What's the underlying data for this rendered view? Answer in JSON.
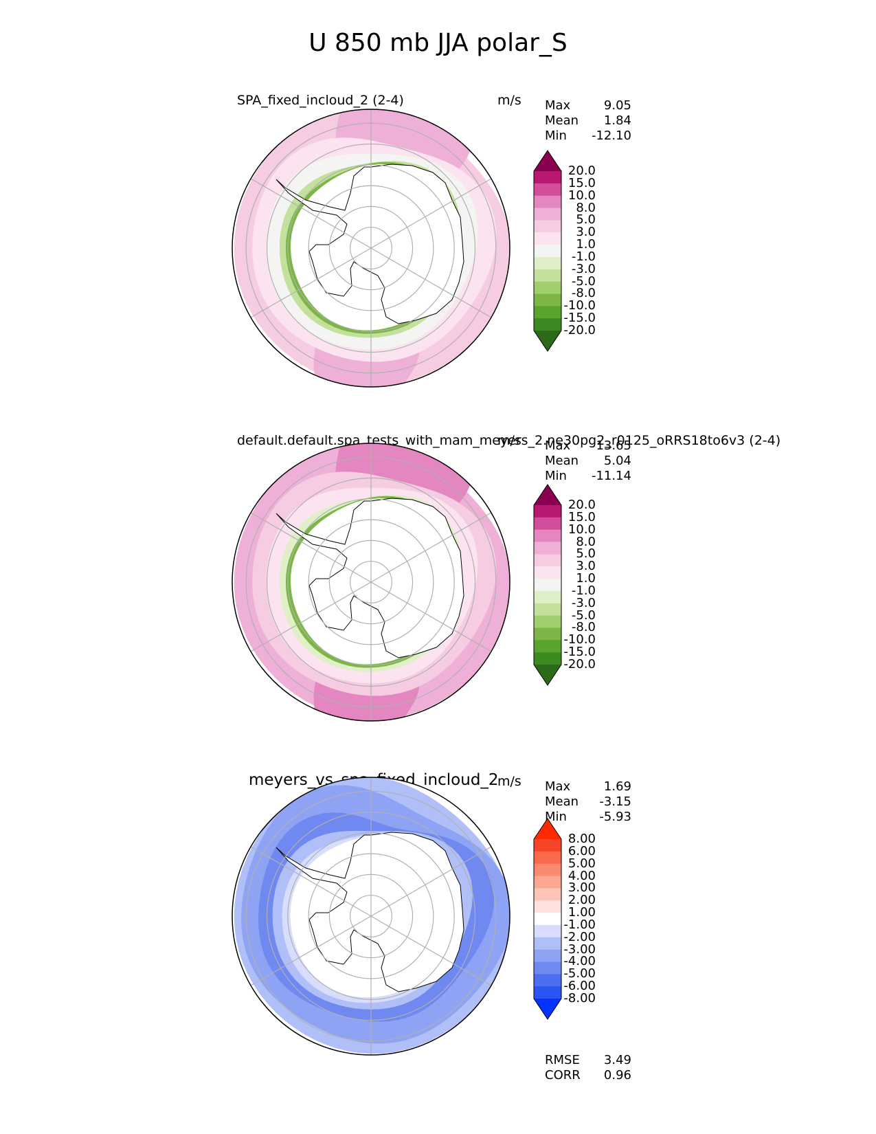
{
  "figure": {
    "title": "U 850 mb JJA polar_S"
  },
  "panels": [
    {
      "title": "SPA_fixed_incloud_2 (2-4)",
      "units": "m/s",
      "stats": [
        {
          "label": "Max",
          "value": "9.05"
        },
        {
          "label": "Mean",
          "value": "1.84"
        },
        {
          "label": "Min",
          "value": "-12.10"
        }
      ]
    },
    {
      "title": "default.default.spa_tests_with_mam_meyers_2.ne30pg2_r0125_oRRS18to6v3 (2-4)",
      "units": "m/s",
      "stats": [
        {
          "label": "Max",
          "value": "13.65"
        },
        {
          "label": "Mean",
          "value": "5.04"
        },
        {
          "label": "Min",
          "value": "-11.14"
        }
      ]
    },
    {
      "title": "meyers_vs_spa_fixed_incloud_2",
      "units": "m/s",
      "stats": [
        {
          "label": "Max",
          "value": "1.69"
        },
        {
          "label": "Mean",
          "value": "-3.15"
        },
        {
          "label": "Min",
          "value": "-5.93"
        }
      ],
      "metrics": [
        {
          "label": "RMSE",
          "value": "3.49"
        },
        {
          "label": "CORR",
          "value": "0.96"
        }
      ]
    }
  ],
  "chart_data": [
    {
      "type": "heatmap",
      "projection": "south polar stereographic",
      "title": "SPA_fixed_incloud_2 (2-4)",
      "units": "m/s",
      "colorbar": {
        "levels": [
          "-20.0",
          "-15.0",
          "-10.0",
          "-8.0",
          "-5.0",
          "-3.0",
          "-1.0",
          "1.0",
          "3.0",
          "5.0",
          "8.0",
          "10.0",
          "15.0",
          "20.0"
        ],
        "colors": [
          "#2c6a1a",
          "#3e8a22",
          "#5aa32e",
          "#7db646",
          "#a2cf6e",
          "#c3e19c",
          "#dff0c6",
          "#f4f4f2",
          "#fbe4f0",
          "#f6cce3",
          "#eeb0d6",
          "#e486bf",
          "#d24e9a",
          "#b8186f",
          "#8a0051"
        ],
        "extend": "both"
      },
      "stats": {
        "max": 9.05,
        "mean": 1.84,
        "min": -12.1
      }
    },
    {
      "type": "heatmap",
      "projection": "south polar stereographic",
      "title": "default.default.spa_tests_with_mam_meyers_2.ne30pg2_r0125_oRRS18to6v3 (2-4)",
      "units": "m/s",
      "colorbar": {
        "levels": [
          "-20.0",
          "-15.0",
          "-10.0",
          "-8.0",
          "-5.0",
          "-3.0",
          "-1.0",
          "1.0",
          "3.0",
          "5.0",
          "8.0",
          "10.0",
          "15.0",
          "20.0"
        ],
        "colors": [
          "#2c6a1a",
          "#3e8a22",
          "#5aa32e",
          "#7db646",
          "#a2cf6e",
          "#c3e19c",
          "#dff0c6",
          "#f4f4f2",
          "#fbe4f0",
          "#f6cce3",
          "#eeb0d6",
          "#e486bf",
          "#d24e9a",
          "#b8186f",
          "#8a0051"
        ],
        "extend": "both"
      },
      "stats": {
        "max": 13.65,
        "mean": 5.04,
        "min": -11.14
      }
    },
    {
      "type": "heatmap",
      "projection": "south polar stereographic",
      "title": "meyers_vs_spa_fixed_incloud_2",
      "units": "m/s",
      "colorbar": {
        "levels": [
          "-8.00",
          "-6.00",
          "-5.00",
          "-4.00",
          "-3.00",
          "-2.00",
          "-1.00",
          "1.00",
          "2.00",
          "3.00",
          "4.00",
          "5.00",
          "6.00",
          "8.00"
        ],
        "colors": [
          "#0433ff",
          "#2b55f2",
          "#4d6ef0",
          "#6f89f1",
          "#8fa3f4",
          "#b0bff7",
          "#d7ddfb",
          "#ffffff",
          "#fde1dc",
          "#fcc5b8",
          "#fba893",
          "#fa8a6e",
          "#f9694a",
          "#f84428",
          "#ff2a00"
        ],
        "extend": "both"
      },
      "stats": {
        "max": 1.69,
        "mean": -3.15,
        "min": -5.93
      },
      "rmse": 3.49,
      "corr": 0.96
    }
  ]
}
